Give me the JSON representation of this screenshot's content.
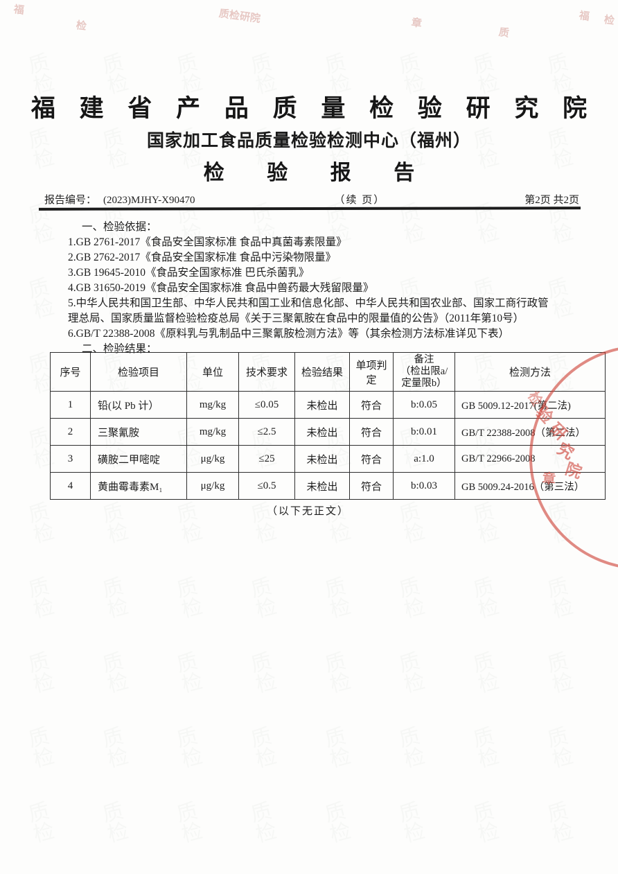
{
  "header": {
    "institute_name": "福 建 省 产 品 质 量 检 验 研 究 院",
    "center_name": "国家加工食品质量检验检测中心（福州）",
    "report_title": "检 验 报 告",
    "report_no_label": "报告编号：",
    "report_no": "(2023)MJHY-X90470",
    "continued_label": "（续  页）",
    "page_label": "第2页  共2页"
  },
  "basis": {
    "heading": "一、检验依据：",
    "items": [
      "1.GB 2761-2017《食品安全国家标准 食品中真菌毒素限量》",
      "2.GB 2762-2017《食品安全国家标准 食品中污染物限量》",
      "3.GB 19645-2010《食品安全国家标准 巴氏杀菌乳》",
      "4.GB 31650-2019《食品安全国家标准 食品中兽药最大残留限量》",
      "5.中华人民共和国卫生部、中华人民共和国工业和信息化部、中华人民共和国农业部、国家工商行政管理总局、国家质量监督检验检疫总局《关于三聚氰胺在食品中的限量值的公告》（2011年第10号）",
      "6.GB/T 22388-2008《原料乳与乳制品中三聚氰胺检测方法》等（其余检测方法标准详见下表）"
    ]
  },
  "results": {
    "heading": "二、检验结果：",
    "table": {
      "headers": [
        "序号",
        "检验项目",
        "单位",
        "技术要求",
        "检验结果",
        "单项判定",
        "备注\n（检出限a/\n定量限b）",
        "检测方法"
      ],
      "rows": [
        [
          "1",
          "铅(以 Pb 计）",
          "mg/kg",
          "≤0.05",
          "未检出",
          "符合",
          "b:0.05",
          "GB 5009.12-2017(第二法)"
        ],
        [
          "2",
          "三聚氰胺",
          "mg/kg",
          "≤2.5",
          "未检出",
          "符合",
          "b:0.01",
          "GB/T 22388-2008（第二法）"
        ],
        [
          "3",
          "磺胺二甲嘧啶",
          "μg/kg",
          "≤25",
          "未检出",
          "符合",
          "a:1.0",
          "GB/T 22966-2008"
        ],
        [
          "4",
          "黄曲霉毒素M₁",
          "μg/kg",
          "≤0.5",
          "未检出",
          "符合",
          "b:0.03",
          "GB 5009.24-2016（第三法）"
        ]
      ],
      "end_note": "（以下无正文）"
    }
  },
  "stamp": {
    "color": "#cd4036",
    "fragments": [
      "验",
      "研",
      "究",
      "院",
      "章",
      "检"
    ]
  },
  "decorations": {
    "watermark_glyph": "质检",
    "top_marks": [
      "福",
      "检",
      "质检",
      "研院",
      "章",
      "质"
    ]
  }
}
